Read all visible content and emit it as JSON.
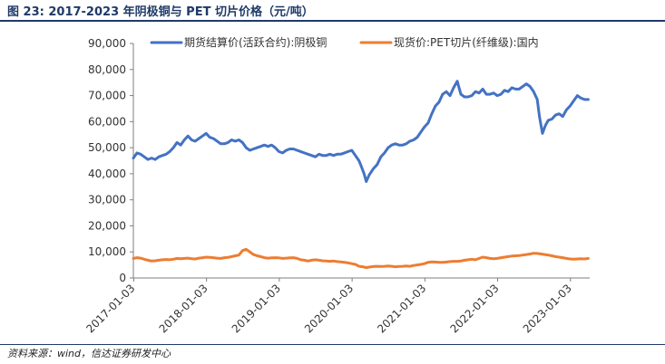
{
  "header": {
    "figure_label": "图 23:",
    "figure_title": "2017-2023 年阴极铜与 PET 切片价格（元/吨）"
  },
  "source_text": "资料来源：wind，信达证券研发中心",
  "colors": {
    "copper": "#4472c4",
    "pet": "#ed7d31"
  },
  "chart_data": {
    "type": "line",
    "title": "2017-2023 年阴极铜与 PET 切片价格（元/吨）",
    "xlabel": "",
    "ylabel": "",
    "ylim": [
      0,
      90000
    ],
    "yticks": [
      "0",
      "10,000",
      "20,000",
      "30,000",
      "40,000",
      "50,000",
      "60,000",
      "70,000",
      "80,000",
      "90,000"
    ],
    "xticks": [
      "2017-01-03",
      "2018-01-03",
      "2019-01-03",
      "2020-01-03",
      "2021-01-03",
      "2022-01-03",
      "2023-01-03"
    ],
    "xlim": [
      2017.0,
      2023.27
    ],
    "legend": "top",
    "series": [
      {
        "name": "期货结算价(活跃合约):阴极铜",
        "color": "#4472c4",
        "x": [
          2017.0,
          2017.05,
          2017.1,
          2017.15,
          2017.2,
          2017.25,
          2017.3,
          2017.35,
          2017.4,
          2017.45,
          2017.5,
          2017.55,
          2017.6,
          2017.65,
          2017.7,
          2017.75,
          2017.8,
          2017.85,
          2017.9,
          2017.95,
          2018.0,
          2018.05,
          2018.1,
          2018.15,
          2018.2,
          2018.25,
          2018.3,
          2018.35,
          2018.4,
          2018.45,
          2018.5,
          2018.55,
          2018.6,
          2018.65,
          2018.7,
          2018.75,
          2018.8,
          2018.85,
          2018.9,
          2018.95,
          2019.0,
          2019.05,
          2019.1,
          2019.15,
          2019.2,
          2019.25,
          2019.3,
          2019.35,
          2019.4,
          2019.45,
          2019.5,
          2019.55,
          2019.6,
          2019.65,
          2019.7,
          2019.75,
          2019.8,
          2019.85,
          2019.9,
          2019.95,
          2020.0,
          2020.05,
          2020.1,
          2020.13,
          2020.17,
          2020.2,
          2020.24,
          2020.3,
          2020.35,
          2020.4,
          2020.45,
          2020.5,
          2020.55,
          2020.6,
          2020.65,
          2020.7,
          2020.75,
          2020.8,
          2020.85,
          2020.9,
          2020.95,
          2021.0,
          2021.05,
          2021.1,
          2021.15,
          2021.2,
          2021.25,
          2021.3,
          2021.35,
          2021.4,
          2021.45,
          2021.5,
          2021.55,
          2021.6,
          2021.65,
          2021.7,
          2021.75,
          2021.8,
          2021.85,
          2021.9,
          2021.95,
          2022.0,
          2022.05,
          2022.1,
          2022.15,
          2022.2,
          2022.25,
          2022.3,
          2022.35,
          2022.4,
          2022.45,
          2022.5,
          2022.55,
          2022.58,
          2022.62,
          2022.66,
          2022.7,
          2022.75,
          2022.8,
          2022.85,
          2022.9,
          2022.95,
          2023.0,
          2023.05,
          2023.1,
          2023.15,
          2023.2,
          2023.25
        ],
        "values": [
          46000,
          48000,
          47500,
          46500,
          45500,
          46000,
          45500,
          46500,
          47000,
          47500,
          48500,
          50000,
          52000,
          51000,
          53000,
          54500,
          53000,
          52500,
          53500,
          54500,
          55500,
          54000,
          53500,
          52500,
          51500,
          51500,
          52000,
          53000,
          52500,
          53000,
          52000,
          50000,
          49000,
          49500,
          50000,
          50500,
          51000,
          50500,
          51000,
          50000,
          48500,
          48000,
          49000,
          49500,
          49500,
          49000,
          48500,
          48000,
          47500,
          47000,
          46500,
          47500,
          47000,
          47000,
          47500,
          47000,
          47500,
          47500,
          48000,
          48500,
          49000,
          47000,
          45000,
          43000,
          40000,
          37000,
          39500,
          42000,
          43500,
          46500,
          48000,
          50000,
          51000,
          51500,
          51000,
          51000,
          51500,
          52500,
          53000,
          54000,
          56000,
          58000,
          59500,
          63000,
          66000,
          67500,
          70500,
          71500,
          70000,
          73000,
          75500,
          70500,
          69500,
          69500,
          70000,
          71500,
          71000,
          72500,
          70500,
          70500,
          71000,
          70000,
          70500,
          72000,
          71500,
          73000,
          72500,
          72500,
          73500,
          74500,
          73500,
          71500,
          68500,
          62000,
          55500,
          58500,
          60500,
          61000,
          62500,
          63000,
          62000,
          64500,
          66000,
          68000,
          70000,
          69000,
          68500,
          68500
        ]
      },
      {
        "name": "现货价:PET切片(纤维级):国内",
        "color": "#ed7d31",
        "x": [
          2017.0,
          2017.05,
          2017.1,
          2017.15,
          2017.2,
          2017.25,
          2017.3,
          2017.35,
          2017.4,
          2017.45,
          2017.5,
          2017.55,
          2017.6,
          2017.65,
          2017.7,
          2017.75,
          2017.8,
          2017.85,
          2017.9,
          2017.95,
          2018.0,
          2018.05,
          2018.1,
          2018.15,
          2018.2,
          2018.25,
          2018.3,
          2018.35,
          2018.4,
          2018.45,
          2018.5,
          2018.55,
          2018.6,
          2018.65,
          2018.7,
          2018.75,
          2018.8,
          2018.85,
          2018.9,
          2018.95,
          2019.0,
          2019.05,
          2019.1,
          2019.15,
          2019.2,
          2019.25,
          2019.3,
          2019.35,
          2019.4,
          2019.45,
          2019.5,
          2019.55,
          2019.6,
          2019.65,
          2019.7,
          2019.75,
          2019.8,
          2019.85,
          2019.9,
          2019.95,
          2020.0,
          2020.05,
          2020.1,
          2020.15,
          2020.2,
          2020.25,
          2020.3,
          2020.35,
          2020.4,
          2020.45,
          2020.5,
          2020.55,
          2020.6,
          2020.65,
          2020.7,
          2020.75,
          2020.8,
          2020.85,
          2020.9,
          2020.95,
          2021.0,
          2021.05,
          2021.1,
          2021.15,
          2021.2,
          2021.25,
          2021.3,
          2021.35,
          2021.4,
          2021.45,
          2021.5,
          2021.55,
          2021.6,
          2021.65,
          2021.7,
          2021.75,
          2021.8,
          2021.85,
          2021.9,
          2021.95,
          2022.0,
          2022.05,
          2022.1,
          2022.15,
          2022.2,
          2022.25,
          2022.3,
          2022.35,
          2022.4,
          2022.45,
          2022.5,
          2022.55,
          2022.6,
          2022.65,
          2022.7,
          2022.75,
          2022.8,
          2022.85,
          2022.9,
          2022.95,
          2023.0,
          2023.05,
          2023.1,
          2023.15,
          2023.2,
          2023.25
        ],
        "values": [
          7500,
          7800,
          7600,
          7200,
          6800,
          6500,
          6600,
          6800,
          7000,
          7100,
          7000,
          7200,
          7500,
          7400,
          7500,
          7600,
          7400,
          7300,
          7600,
          7800,
          8000,
          7900,
          7800,
          7600,
          7500,
          7800,
          7900,
          8200,
          8500,
          8800,
          10500,
          11000,
          10000,
          9000,
          8500,
          8200,
          7800,
          7600,
          7700,
          7800,
          7700,
          7500,
          7600,
          7700,
          7800,
          7500,
          7000,
          6800,
          6500,
          6800,
          7000,
          6800,
          6600,
          6500,
          6400,
          6500,
          6300,
          6200,
          6000,
          5800,
          5500,
          5200,
          4500,
          4300,
          4000,
          4200,
          4400,
          4500,
          4400,
          4500,
          4600,
          4500,
          4300,
          4400,
          4500,
          4600,
          4500,
          4800,
          5000,
          5200,
          5500,
          6000,
          6200,
          6100,
          6000,
          6000,
          6100,
          6300,
          6400,
          6400,
          6500,
          6800,
          7000,
          7200,
          7000,
          7500,
          8000,
          7800,
          7500,
          7400,
          7500,
          7800,
          8000,
          8200,
          8400,
          8500,
          8600,
          8800,
          9000,
          9200,
          9500,
          9400,
          9200,
          9000,
          8800,
          8500,
          8200,
          8000,
          7800,
          7500,
          7300,
          7200,
          7300,
          7400,
          7300,
          7500
        ]
      }
    ]
  }
}
